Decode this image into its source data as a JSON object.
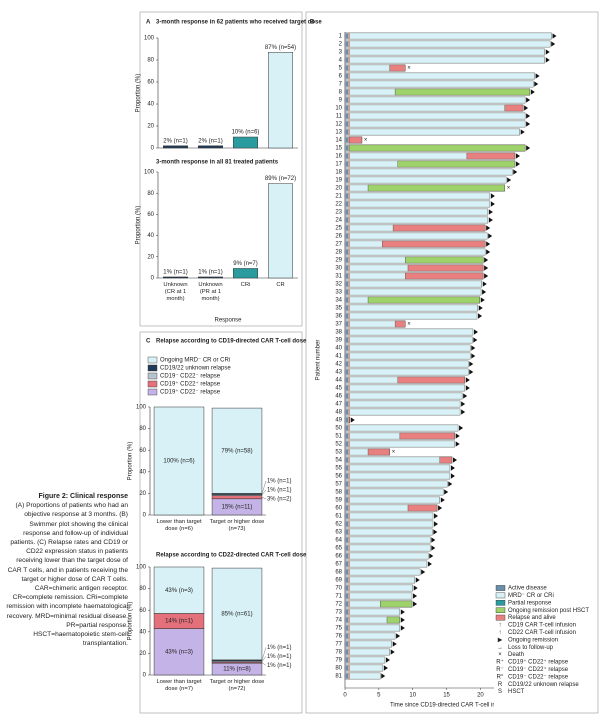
{
  "figure": {
    "caption_title": "Figure 2: Clinical response",
    "caption": "(A) Proportions of patients who had an objective response at 3 months. (B) Swimmer plot showing the clinical response and follow-up of individual patients. (C) Relapse rates and CD19 or CD22 expression status in patients receiving lower than the target dose of CAR T cells, and in patients receiving the target or higher dose of CAR T cells. CAR=chimeric antigen receptor. CR=complete remission. CRi=complete remission with incomplete haematological recovery. MRD=minimal residual disease. PR=partial response. HSCT=haematopoietic stem-cell transplantation."
  },
  "chart_data": [
    {
      "type": "bar",
      "panel": "A",
      "title": "3-month response in 62 patients who received target dose",
      "ylabel": "Proportion (%)",
      "categories": [
        null,
        null,
        null,
        null
      ],
      "values": [
        2,
        2,
        10,
        87
      ],
      "value_labels": [
        "2% (n=1)",
        "2% (n=1)",
        "10% (n=6)",
        "87% (n=54)"
      ],
      "colors": [
        "#1f3b57",
        "#1f3b57",
        "#2a9ca0",
        "#d8f1f6"
      ],
      "ylim": [
        0,
        100
      ],
      "yticks": [
        0,
        20,
        40,
        60,
        80,
        100
      ]
    },
    {
      "type": "bar",
      "title": "3-month response in all 81 treated patients",
      "ylabel": "Proportion (%)",
      "xlabel": "Response",
      "categories": [
        "Unknown (CR at 1 month)",
        "Unknown (PR at 1 month)",
        "CRi",
        "CR"
      ],
      "values": [
        1,
        1,
        9,
        89
      ],
      "value_labels": [
        "1% (n=1)",
        "1% (n=1)",
        "9% (n=7)",
        "89% (n=72)"
      ],
      "colors": [
        "#1f3b57",
        "#1f3b57",
        "#2a9ca0",
        "#d8f1f6"
      ],
      "ylim": [
        0,
        100
      ],
      "yticks": [
        0,
        20,
        40,
        60,
        80,
        100
      ]
    },
    {
      "type": "stacked",
      "panel": "C",
      "title": "Relapse according to CD19-directed CAR T-cell dose",
      "ylabel": "Proportion (%)",
      "legend": true,
      "categories": [
        "Lower than target dose (n=6)",
        "Target or higher dose (n=73)"
      ],
      "series": [
        {
          "name": "CD19⁺ CD22⁻ relapse",
          "color": "#c3b3e6",
          "values": [
            null,
            15
          ],
          "value_labels": [
            null,
            "15% (n=11)"
          ]
        },
        {
          "name": "CD19⁺ CD22⁺ relapse",
          "color": "#e3707a",
          "values": [
            null,
            3
          ],
          "value_labels": [
            null,
            "3% (n=2)"
          ]
        },
        {
          "name": "CD19⁻ CD22⁻ relapse",
          "color": "#b9c3cf",
          "values": [
            null,
            1
          ],
          "value_labels": [
            null,
            "1% (n=1)"
          ]
        },
        {
          "name": "CD19/22 unknown relapse",
          "color": "#1f3b57",
          "values": [
            null,
            1
          ],
          "value_labels": [
            null,
            "1% (n=1)"
          ]
        },
        {
          "name": "Ongoing MRD⁻ CR or CRi",
          "color": "#d8f1f6",
          "values": [
            100,
            79
          ],
          "value_labels": [
            "100% (n=6)",
            "79% (n=58)"
          ]
        }
      ],
      "ylim": [
        0,
        100
      ],
      "yticks": [
        0,
        20,
        40,
        60,
        80,
        100
      ]
    },
    {
      "type": "stacked",
      "title": "Relapse according to CD22-directed CAR T-cell dose",
      "ylabel": "Proportion (%)",
      "legend": false,
      "categories": [
        "Lower than target dose (n=7)",
        "Target or higher dose (n=72)"
      ],
      "series": [
        {
          "color": "#c3b3e6",
          "values": [
            43,
            11
          ],
          "value_labels": [
            "43% (n=3)",
            "11% (n=8)"
          ]
        },
        {
          "color": "#e3707a",
          "values": [
            14,
            1
          ],
          "value_labels": [
            "14% (n=1)",
            "1% (n=1)"
          ]
        },
        {
          "color": "#b9c3cf",
          "values": [
            null,
            1
          ],
          "value_labels": [
            null,
            "1% (n=1)"
          ]
        },
        {
          "color": "#1f3b57",
          "values": [
            null,
            1
          ],
          "value_labels": [
            null,
            "1% (n=1)"
          ]
        },
        {
          "color": "#d8f1f6",
          "values": [
            43,
            85
          ],
          "value_labels": [
            "43% (n=3)",
            "85% (n=61)"
          ]
        }
      ],
      "ylim": [
        0,
        100
      ],
      "yticks": [
        0,
        20,
        40,
        60,
        80,
        100
      ]
    },
    {
      "type": "swimmer",
      "panel": "B",
      "ylabel": "Patient number",
      "xlabel": "Time since CD19-directed CAR T-cell infusion (months)",
      "categories": [
        1,
        2,
        3,
        4,
        5,
        6,
        7,
        8,
        9,
        10,
        11,
        12,
        13,
        14,
        15,
        16,
        17,
        18,
        19,
        20,
        21,
        22,
        23,
        24,
        25,
        26,
        27,
        28,
        29,
        30,
        31,
        32,
        33,
        34,
        35,
        36,
        37,
        38,
        39,
        40,
        41,
        42,
        43,
        44,
        45,
        46,
        47,
        48,
        49,
        50,
        51,
        52,
        53,
        54,
        55,
        56,
        57,
        58,
        59,
        60,
        61,
        62,
        63,
        64,
        65,
        66,
        67,
        68,
        69,
        70,
        71,
        72,
        73,
        74,
        75,
        76,
        77,
        78,
        79,
        80,
        81
      ],
      "values": [
        30.5,
        30.3,
        29.5,
        29.5,
        8.9,
        28,
        27.8,
        27.3,
        26.6,
        26.3,
        26.6,
        26.6,
        25.8,
        2.5,
        26.6,
        25.1,
        25.1,
        24.7,
        23.8,
        23.6,
        21.4,
        21.4,
        21.1,
        21.1,
        20.7,
        21,
        20.7,
        20.7,
        20.4,
        20.4,
        20.4,
        20.2,
        20.1,
        19.9,
        19.6,
        19.5,
        8.9,
        18.9,
        18.8,
        18.5,
        18.5,
        18.2,
        18.2,
        17.7,
        17.7,
        17.3,
        17,
        17,
        0.7,
        16.7,
        16.2,
        16.2,
        6.6,
        15.8,
        15.5,
        15.5,
        15.1,
        14.5,
        14,
        13.6,
        13,
        13,
        12.9,
        12.6,
        12.6,
        12.3,
        12.1,
        11.1,
        10.3,
        10,
        9.9,
        9.9,
        8.1,
        8.1,
        8.1,
        7.4,
        6.9,
        6.6,
        5.9,
        5.6,
        5.2
      ],
      "color": "#d8f1f6",
      "events": [
        {
          "patient": 5,
          "start": 6.6,
          "kind": "relapse"
        },
        {
          "patient": 8,
          "start": 7.4,
          "kind": "hsct"
        },
        {
          "patient": 10,
          "start": 23.6,
          "kind": "relapse"
        },
        {
          "patient": 14,
          "start": 0.6,
          "kind": "relapse"
        },
        {
          "patient": 15,
          "start": 0.6,
          "kind": "hsct"
        },
        {
          "patient": 16,
          "start": 18,
          "kind": "relapse"
        },
        {
          "patient": 17,
          "start": 7.8,
          "kind": "hsct"
        },
        {
          "patient": 20,
          "start": 3.4,
          "kind": "hsct"
        },
        {
          "patient": 25,
          "start": 7.1,
          "kind": "relapse"
        },
        {
          "patient": 27,
          "start": 5.5,
          "kind": "relapse"
        },
        {
          "patient": 29,
          "start": 8.9,
          "kind": "hsct"
        },
        {
          "patient": 30,
          "start": 9.3,
          "kind": "relapse"
        },
        {
          "patient": 31,
          "start": 8.9,
          "kind": "relapse"
        },
        {
          "patient": 34,
          "start": 3.4,
          "kind": "hsct"
        },
        {
          "patient": 37,
          "start": 7.4,
          "kind": "relapse"
        },
        {
          "patient": 44,
          "start": 7.8,
          "kind": "relapse"
        },
        {
          "patient": 51,
          "start": 8.1,
          "kind": "relapse"
        },
        {
          "patient": 53,
          "start": 3.4,
          "kind": "relapse"
        },
        {
          "patient": 54,
          "start": 14,
          "kind": "relapse"
        },
        {
          "patient": 60,
          "start": 9.3,
          "kind": "relapse"
        },
        {
          "patient": 72,
          "start": 5.2,
          "kind": "hsct"
        },
        {
          "patient": 74,
          "start": 6.2,
          "kind": "hsct"
        }
      ],
      "kind_colors": {
        "relapse": "#e88080",
        "hsct": "#9ed26a"
      },
      "deaths": [
        5,
        14,
        20,
        37,
        53
      ],
      "xlim": [
        0,
        35
      ],
      "xticks": [
        0,
        5,
        10,
        15,
        20,
        25,
        30,
        35
      ],
      "legend": [
        {
          "label": "Active disease",
          "color": "#6b8fa8"
        },
        {
          "label": "MRD⁻ CR or CRi",
          "color": "#d8f1f6"
        },
        {
          "label": "Partial response",
          "color": "#2a9ca0"
        },
        {
          "label": "Ongoing remission post HSCT",
          "color": "#9ed26a"
        },
        {
          "label": "Relapse and alive",
          "color": "#e88080"
        }
      ],
      "legend_symbols": [
        {
          "symbol": "↑",
          "label": "CD19 CAR T-cell infusion"
        },
        {
          "symbol": "↑",
          "label": "CD22 CAR T-cell infusion"
        },
        {
          "symbol": "▶",
          "label": "Ongoing remission"
        },
        {
          "symbol": "→",
          "label": "Loss to follow-up"
        },
        {
          "symbol": "×",
          "label": "Death"
        },
        {
          "symbol": "R⁺",
          "label": "CD19⁺ CD22⁺ relapse"
        },
        {
          "symbol": "R⁻",
          "label": "CD19⁻ CD22⁺ relapse"
        },
        {
          "symbol": "R°",
          "label": "CD19⁻ CD22⁻ relapse"
        },
        {
          "symbol": "R",
          "label": "CD19/22 unknown relapse"
        },
        {
          "symbol": "S",
          "label": "HSCT"
        }
      ]
    }
  ]
}
